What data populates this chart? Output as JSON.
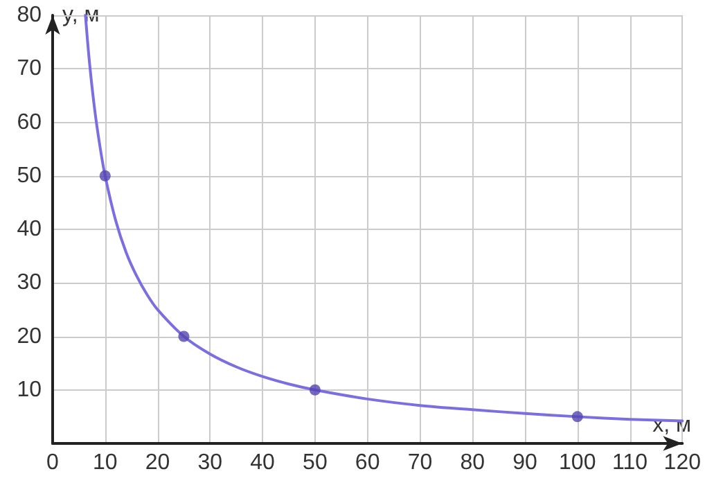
{
  "chart_data": {
    "type": "line",
    "xlabel": "x, м",
    "ylabel": "y, м",
    "xlim": [
      0,
      120
    ],
    "xticks": [
      0,
      10,
      20,
      30,
      40,
      50,
      60,
      70,
      80,
      90,
      100,
      110,
      120
    ],
    "ylim": [
      0,
      80
    ],
    "yticks": [
      {
        "value": 0,
        "label": null
      },
      10,
      20,
      30,
      40,
      50,
      60,
      70,
      80
    ],
    "grid": true,
    "series": [
      {
        "color": "#7b6ee0",
        "marker": "none",
        "x": [
          6.25,
          7,
          8,
          9,
          10,
          12,
          14,
          16,
          18,
          20,
          25,
          30,
          35,
          40,
          45,
          50,
          60,
          70,
          80,
          90,
          100,
          110,
          120
        ],
        "values": [
          80,
          71.4,
          62.5,
          55.6,
          50,
          41.7,
          35.7,
          31.3,
          27.8,
          25,
          20,
          16.7,
          14.3,
          12.5,
          11.1,
          10,
          8.3,
          7.1,
          6.3,
          5.6,
          5,
          4.5,
          4.2
        ]
      },
      {
        "type": "scatter",
        "color": "#5243b0",
        "marker": "circle",
        "x": [
          10,
          25,
          50,
          100
        ],
        "values": [
          50,
          20,
          10,
          5
        ]
      }
    ]
  }
}
